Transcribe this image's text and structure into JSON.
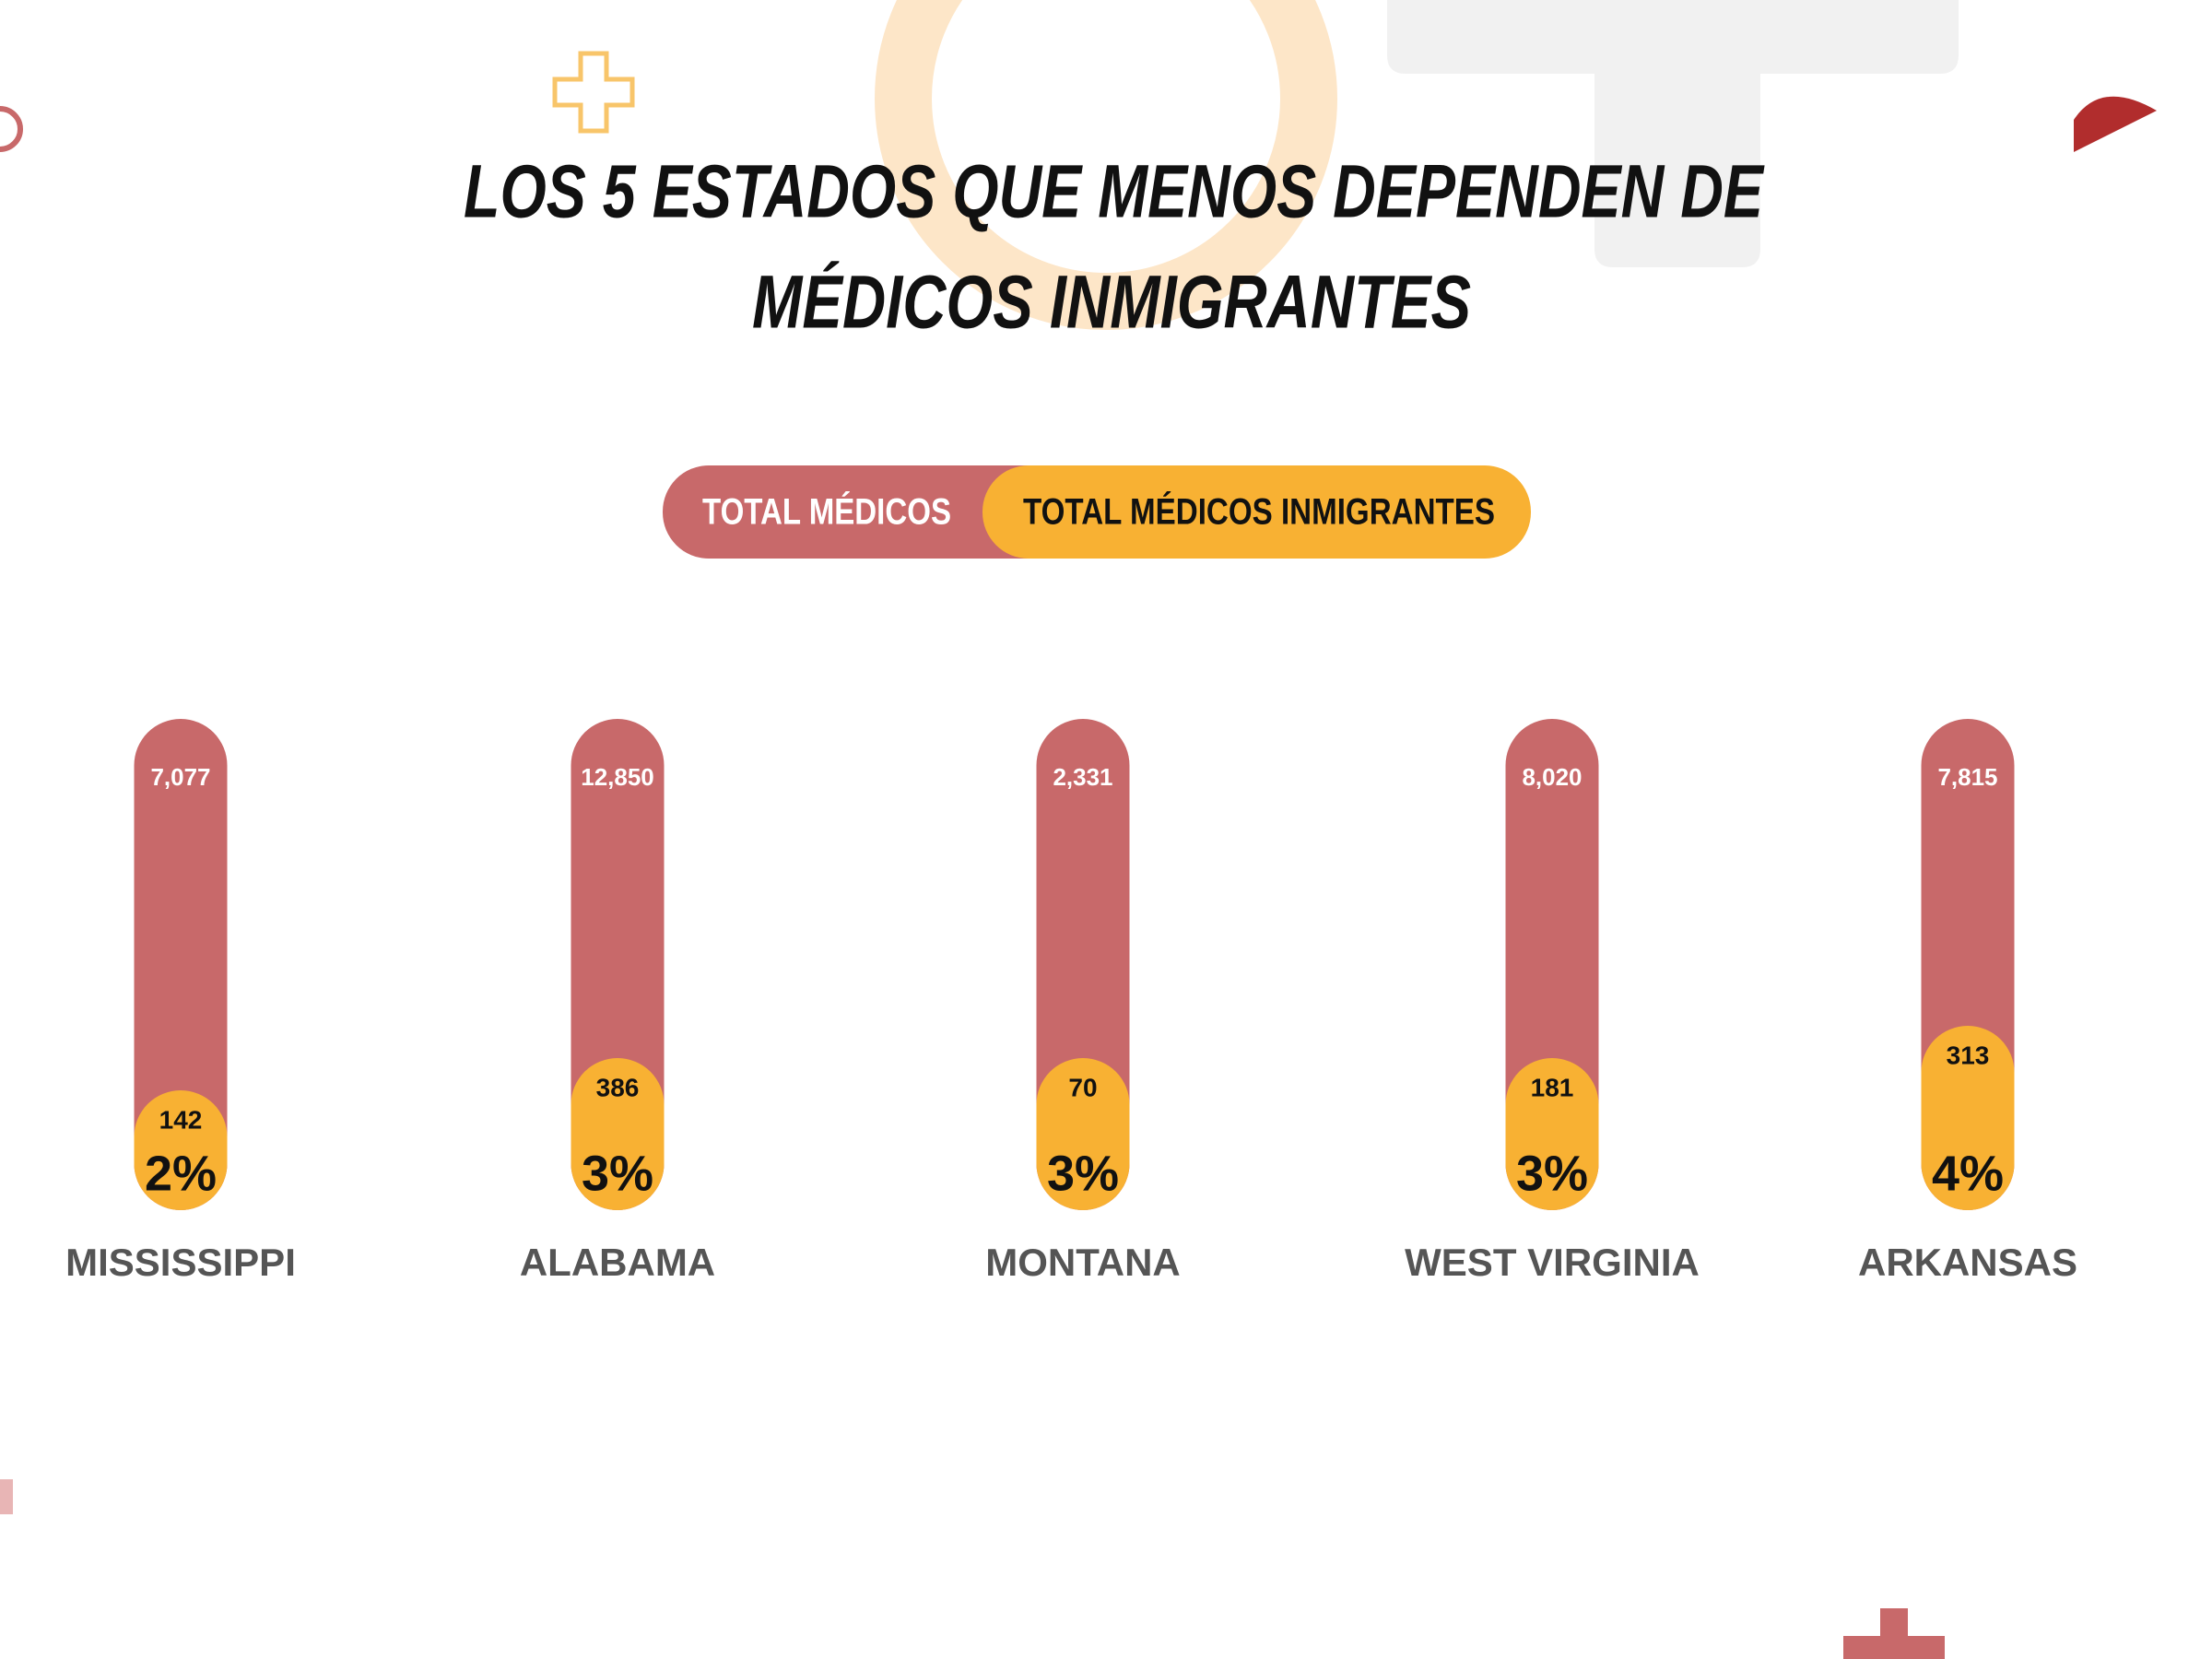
{
  "chart_data": {
    "type": "bar",
    "title": [
      "LOS 5 ESTADOS QUE MENOS DEPENDEN DE",
      "MÉDICOS INMIGRANTES"
    ],
    "categories": [
      "MISSISSIPPI",
      "ALABAMA",
      "MONTANA",
      "WEST VIRGINIA",
      "ARKANSAS"
    ],
    "series": [
      {
        "name": "TOTAL MÉDICOS",
        "color": "#c8696a",
        "values": [
          7077,
          12850,
          2331,
          8020,
          7815
        ],
        "value_labels": [
          "7,077",
          "12,850",
          "2,331",
          "8,020",
          "7,815"
        ]
      },
      {
        "name": "TOTAL MÉDICOS INMIGRANTES",
        "color": "#f8b133",
        "values": [
          142,
          386,
          70,
          181,
          313
        ]
      }
    ],
    "shares": {
      "values": [
        2,
        3,
        3,
        3,
        4
      ],
      "value_labels": [
        "2%",
        "3%",
        "3%",
        "3%",
        "4%"
      ]
    }
  }
}
